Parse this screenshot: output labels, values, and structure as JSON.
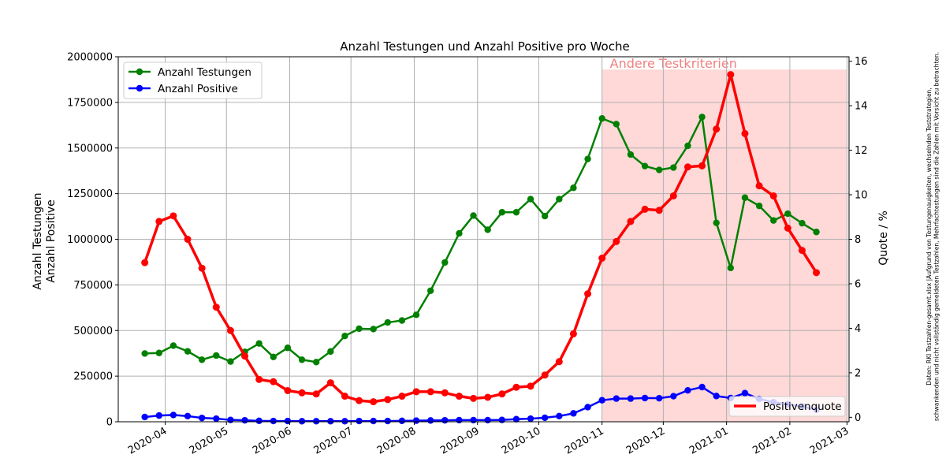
{
  "chart_data": {
    "type": "line",
    "title": "Anzahl Testungen und Anzahl Positive pro Woche",
    "ylabel_left": [
      "Anzahl Testungen",
      "Anzahl Positive"
    ],
    "ylabel_right": "Quote / %",
    "ylim_left": [
      0,
      2000000
    ],
    "ylim_right": [
      -0.2,
      16.2
    ],
    "xlim": [
      "2020-03-09",
      "2021-03-02"
    ],
    "left_ticks": [
      0,
      250000,
      500000,
      750000,
      1000000,
      1250000,
      1500000,
      1750000,
      2000000
    ],
    "right_ticks": [
      0,
      2,
      4,
      6,
      8,
      10,
      12,
      14,
      16
    ],
    "x_ticks": [
      "2020-04",
      "2020-05",
      "2020-06",
      "2020-07",
      "2020-08",
      "2020-09",
      "2020-10",
      "2020-11",
      "2020-12",
      "2021-01",
      "2021-02",
      "2021-03"
    ],
    "x": [
      "2020-03-22",
      "2020-03-29",
      "2020-04-05",
      "2020-04-12",
      "2020-04-19",
      "2020-04-26",
      "2020-05-03",
      "2020-05-10",
      "2020-05-17",
      "2020-05-24",
      "2020-05-31",
      "2020-06-07",
      "2020-06-14",
      "2020-06-21",
      "2020-06-28",
      "2020-07-05",
      "2020-07-12",
      "2020-07-19",
      "2020-07-26",
      "2020-08-02",
      "2020-08-09",
      "2020-08-16",
      "2020-08-23",
      "2020-08-30",
      "2020-09-06",
      "2020-09-13",
      "2020-09-20",
      "2020-09-27",
      "2020-10-04",
      "2020-10-11",
      "2020-10-18",
      "2020-10-25",
      "2020-11-01",
      "2020-11-08",
      "2020-11-15",
      "2020-11-22",
      "2020-11-29",
      "2020-12-06",
      "2020-12-13",
      "2020-12-20",
      "2020-12-27",
      "2021-01-03",
      "2021-01-10",
      "2021-01-17",
      "2021-01-24",
      "2021-01-31",
      "2021-02-07",
      "2021-02-14"
    ],
    "series": [
      {
        "name": "Anzahl Testungen",
        "axis": "left",
        "color": "#008000",
        "values": [
          374000,
          377000,
          417000,
          386000,
          340000,
          363000,
          330000,
          383000,
          429000,
          355000,
          405000,
          340000,
          327000,
          385000,
          470000,
          510000,
          508000,
          544000,
          555000,
          586000,
          718000,
          873000,
          1032000,
          1130000,
          1052000,
          1148000,
          1148000,
          1220000,
          1127000,
          1220000,
          1282000,
          1440000,
          1662000,
          1631000,
          1464000,
          1401000,
          1380000,
          1393000,
          1512000,
          1670000,
          1090000,
          843000,
          1228000,
          1183000,
          1103000,
          1140000,
          1088000,
          1040000
        ]
      },
      {
        "name": "Anzahl Positive",
        "axis": "left",
        "color": "#0000ff",
        "values": [
          26000,
          34000,
          37000,
          31000,
          21000,
          17000,
          10000,
          8000,
          5000,
          4000,
          4000,
          3000,
          3000,
          3000,
          3000,
          4000,
          4000,
          4000,
          5000,
          6000,
          7000,
          8000,
          9000,
          9000,
          9000,
          10000,
          14000,
          17000,
          22000,
          31000,
          46000,
          80000,
          118000,
          127000,
          127000,
          130000,
          129000,
          140000,
          172000,
          190000,
          141000,
          130000,
          157000,
          125000,
          107000,
          96000,
          84000,
          66000
        ]
      },
      {
        "name": "Positivenquote",
        "axis": "right",
        "color": "#ff0000",
        "values": [
          6.95,
          8.8,
          9.05,
          8.0,
          6.7,
          4.95,
          3.9,
          2.75,
          1.7,
          1.6,
          1.2,
          1.1,
          1.05,
          1.55,
          0.95,
          0.75,
          0.7,
          0.8,
          0.95,
          1.15,
          1.15,
          1.1,
          0.95,
          0.85,
          0.9,
          1.05,
          1.35,
          1.4,
          1.9,
          2.5,
          3.75,
          5.55,
          7.15,
          7.9,
          8.8,
          9.35,
          9.3,
          9.95,
          11.25,
          11.3,
          12.95,
          15.4,
          12.75,
          10.4,
          9.95,
          8.5,
          7.5,
          6.5
        ]
      }
    ],
    "shaded_region": {
      "label": "Andere Testkriterien",
      "x_start": "2020-11-01",
      "x_end": "2021-03-01",
      "y_top_left_axis": 1930000,
      "color": "#ffd8d8",
      "label_color": "#f08080"
    },
    "legend_left": {
      "placement": "top-left",
      "entries": [
        "Anzahl Testungen",
        "Anzahl Positive"
      ]
    },
    "legend_right": {
      "placement": "bottom-right",
      "entries": [
        "Positivenquote"
      ]
    },
    "grid": true
  },
  "footnote": "Daten: RKI Testzahlen-gesamt.xlsx |Aufgrund von Testungenauigkeiten, wechselnden Teststrategien, schwankenden und nicht vollständig gemeldeten Testzahlen, Mehrfachtestungen sind die Zahlen mit Vorsicht zu betrachten."
}
